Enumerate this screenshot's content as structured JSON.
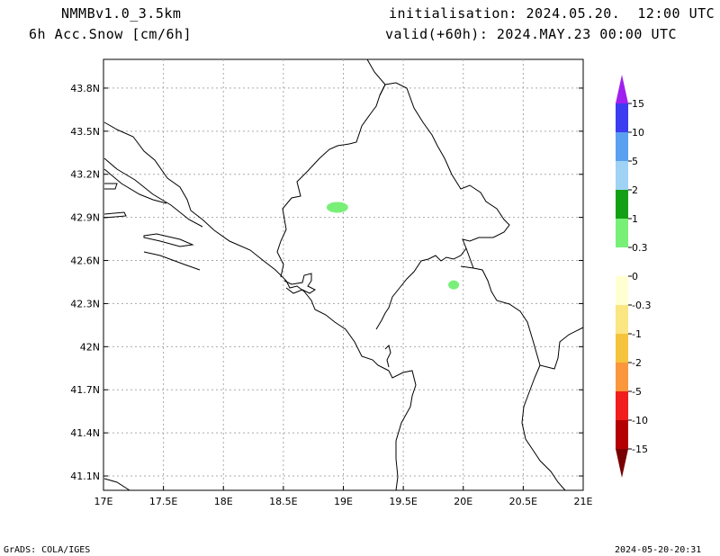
{
  "header": {
    "model": "NMMBv1.0_3.5km",
    "field": "6h Acc.Snow [cm/6h]",
    "init": "initialisation: 2024.05.20.  12:00 UTC",
    "valid": "valid(+60h): 2024.MAY.23 00:00 UTC"
  },
  "map": {
    "lat_ticks": [
      "43.8N",
      "43.5N",
      "43.2N",
      "42.9N",
      "42.6N",
      "42.3N",
      "42N",
      "41.7N",
      "41.4N",
      "41.1N"
    ],
    "lon_ticks": [
      "17E",
      "17.5E",
      "18E",
      "18.5E",
      "19E",
      "19.5E",
      "20E",
      "20.5E",
      "21E"
    ],
    "lon_range": [
      17,
      21
    ],
    "lat_range": [
      41.0,
      44.0
    ],
    "grid": true,
    "snow_areas": [
      {
        "lon": 18.95,
        "lat": 42.97,
        "value_class": "0.3-1",
        "color": "#78f078"
      },
      {
        "lon": 19.92,
        "lat": 42.43,
        "value_class": "0.3-1",
        "color": "#78f078"
      }
    ]
  },
  "colorbar": {
    "labels": [
      "15",
      "10",
      "5",
      "2",
      "1",
      "0.3",
      "0",
      "-0.3",
      "-1",
      "-2",
      "-5",
      "-10",
      "-15"
    ],
    "colors": [
      "#a020f0",
      "#3c3cf0",
      "#5aa0f0",
      "#a0d2f5",
      "#14a014",
      "#78f078",
      "#ffffff",
      "#ffffd2",
      "#fae682",
      "#f5c33c",
      "#fa963c",
      "#f01e1e",
      "#b40000",
      "#780000"
    ]
  },
  "footer": {
    "left": "GrADS: COLA/IGES",
    "right": "2024-05-20-20:31"
  }
}
